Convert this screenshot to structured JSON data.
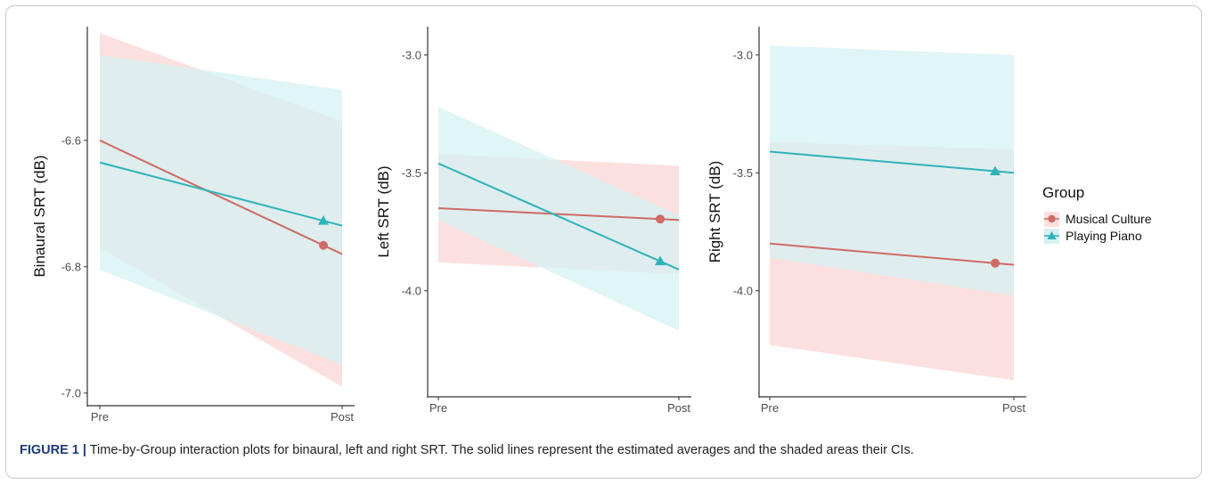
{
  "caption": {
    "label": "FIGURE 1 |",
    "text": " Time-by-Group interaction plots for binaural, left and right SRT. The solid lines represent the estimated averages and the shaded areas their CIs."
  },
  "colors": {
    "musical_culture": "#cd6b64",
    "playing_piano": "#2fb3ba",
    "musical_culture_ci": "#fbe0df",
    "playing_piano_ci": "#d5f1f3"
  },
  "legend": {
    "title": "Group",
    "entries": [
      "Musical Culture",
      "Playing Piano"
    ]
  },
  "chart_data": [
    {
      "type": "line",
      "ylabel": "Binaural SRT (dB)",
      "xlabel": "",
      "categories": [
        "Pre",
        "Post"
      ],
      "yticks": [
        -6.6,
        -6.8,
        -7.0
      ],
      "ytick_labels": [
        "-6.6",
        "-6.8",
        "-7.0"
      ],
      "ylim": [
        -7.02,
        -6.42
      ],
      "series": [
        {
          "name": "Musical Culture",
          "marker": "circle",
          "values": [
            -6.6,
            -6.78
          ],
          "ci_low": [
            -6.77,
            -6.99
          ],
          "ci_high": [
            -6.43,
            -6.57
          ]
        },
        {
          "name": "Playing Piano",
          "marker": "triangle",
          "values": [
            -6.635,
            -6.735
          ],
          "ci_low": [
            -6.805,
            -6.955
          ],
          "ci_high": [
            -6.465,
            -6.52
          ]
        }
      ]
    },
    {
      "type": "line",
      "ylabel": "Left SRT (dB)",
      "xlabel": "",
      "categories": [
        "Pre",
        "Post"
      ],
      "yticks": [
        -3.0,
        -3.5,
        -4.0
      ],
      "ytick_labels": [
        "-3.0",
        "-3.5",
        "-4.0"
      ],
      "ylim": [
        -4.45,
        -2.88
      ],
      "series": [
        {
          "name": "Musical Culture",
          "marker": "circle",
          "values": [
            -3.65,
            -3.7
          ],
          "ci_low": [
            -3.88,
            -3.93
          ],
          "ci_high": [
            -3.42,
            -3.47
          ]
        },
        {
          "name": "Playing Piano",
          "marker": "triangle",
          "values": [
            -3.46,
            -3.91
          ],
          "ci_low": [
            -3.7,
            -4.17
          ],
          "ci_high": [
            -3.22,
            -3.68
          ]
        }
      ]
    },
    {
      "type": "line",
      "ylabel": "Right SRT (dB)",
      "xlabel": "",
      "categories": [
        "Pre",
        "Post"
      ],
      "yticks": [
        -3.0,
        -3.5,
        -4.0
      ],
      "ytick_labels": [
        "-3.0",
        "-3.5",
        "-4.0"
      ],
      "ylim": [
        -4.45,
        -2.88
      ],
      "series": [
        {
          "name": "Musical Culture",
          "marker": "circle",
          "values": [
            -3.8,
            -3.89
          ],
          "ci_low": [
            -4.23,
            -4.38
          ],
          "ci_high": [
            -3.37,
            -3.4
          ]
        },
        {
          "name": "Playing Piano",
          "marker": "triangle",
          "values": [
            -3.41,
            -3.5
          ],
          "ci_low": [
            -3.86,
            -4.02
          ],
          "ci_high": [
            -2.96,
            -3.0
          ]
        }
      ]
    }
  ]
}
